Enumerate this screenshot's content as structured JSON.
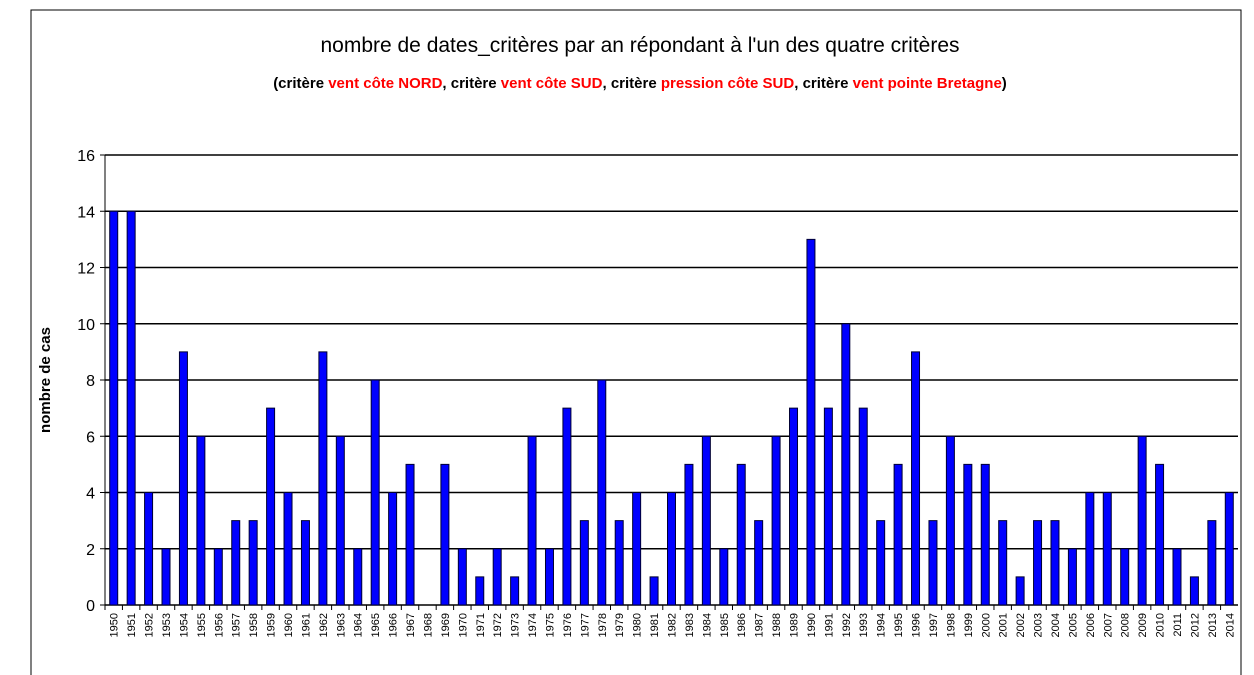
{
  "chart_data": {
    "type": "bar",
    "title": "nombre de dates_critères par an répondant à l'un des quatre critères",
    "subtitle_parts": [
      {
        "text": "(critère ",
        "color": "#000000"
      },
      {
        "text": "vent côte NORD",
        "color": "#ff0000"
      },
      {
        "text": ", critère ",
        "color": "#000000"
      },
      {
        "text": "vent côte SUD",
        "color": "#ff0000"
      },
      {
        "text": ", critère ",
        "color": "#000000"
      },
      {
        "text": "pression côte SUD",
        "color": "#ff0000"
      },
      {
        "text": ", critère ",
        "color": "#000000"
      },
      {
        "text": "vent pointe Bretagne",
        "color": "#ff0000"
      },
      {
        "text": ")",
        "color": "#000000"
      }
    ],
    "y_label": "nombre de cas",
    "categories": [
      "1950",
      "1951",
      "1952",
      "1953",
      "1954",
      "1955",
      "1956",
      "1957",
      "1958",
      "1959",
      "1960",
      "1961",
      "1962",
      "1963",
      "1964",
      "1965",
      "1966",
      "1967",
      "1968",
      "1969",
      "1970",
      "1971",
      "1972",
      "1973",
      "1974",
      "1975",
      "1976",
      "1977",
      "1978",
      "1979",
      "1980",
      "1981",
      "1982",
      "1983",
      "1984",
      "1985",
      "1986",
      "1987",
      "1988",
      "1989",
      "1990",
      "1991",
      "1992",
      "1993",
      "1994",
      "1995",
      "1996",
      "1997",
      "1998",
      "1999",
      "2000",
      "2001",
      "2002",
      "2003",
      "2004",
      "2005",
      "2006",
      "2007",
      "2008",
      "2009",
      "2010",
      "2011",
      "2012",
      "2013",
      "2014"
    ],
    "values": [
      14,
      14,
      4,
      2,
      9,
      6,
      2,
      3,
      3,
      7,
      4,
      3,
      9,
      6,
      2,
      8,
      4,
      5,
      0,
      5,
      2,
      1,
      2,
      1,
      6,
      2,
      7,
      3,
      8,
      3,
      4,
      1,
      4,
      5,
      6,
      2,
      5,
      3,
      6,
      7,
      13,
      7,
      10,
      7,
      3,
      5,
      9,
      3,
      6,
      5,
      5,
      3,
      1,
      3,
      3,
      2,
      4,
      4,
      2,
      6,
      5,
      2,
      1,
      3,
      4
    ],
    "color": "#0000ff",
    "ylim": [
      0,
      16
    ],
    "yticks": [
      0,
      2,
      4,
      6,
      8,
      10,
      12,
      14,
      16
    ],
    "grid": true
  }
}
